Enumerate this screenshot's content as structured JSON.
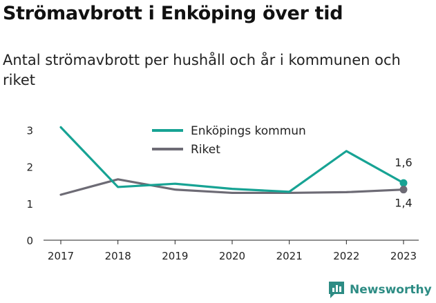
{
  "title": "Strömavbrott i Enköping över tid",
  "subtitle": "Antal strömavbrott per hushåll och år i kommunen och riket",
  "brand": {
    "name": "Newsworthy",
    "icon": "newsworthy-logo-icon"
  },
  "chart_data": {
    "type": "line",
    "x": [
      "2017",
      "2018",
      "2019",
      "2020",
      "2021",
      "2022",
      "2023"
    ],
    "ylim": [
      0,
      3.2
    ],
    "yticks": [
      0,
      1,
      2,
      3
    ],
    "grid": false,
    "legend_position": "top-center",
    "series": [
      {
        "name": "Enköpings kommun",
        "color": "#17a394",
        "values": [
          3.08,
          1.45,
          1.54,
          1.4,
          1.32,
          2.43,
          1.56
        ],
        "end_label": "1,6"
      },
      {
        "name": "Riket",
        "color": "#6d6b75",
        "values": [
          1.24,
          1.66,
          1.38,
          1.29,
          1.29,
          1.31,
          1.38
        ],
        "end_label": "1,4"
      }
    ]
  }
}
